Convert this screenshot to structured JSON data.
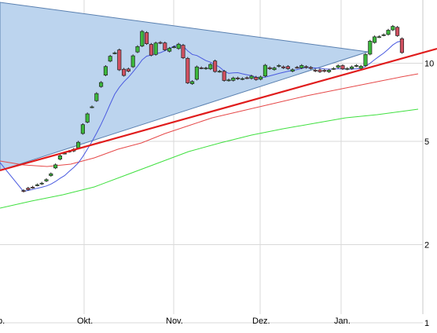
{
  "chart_data": {
    "type": "candlestick",
    "title": "",
    "xlabel": "",
    "ylabel": "",
    "y_scale": "log",
    "ylim": [
      0.65,
      14.5
    ],
    "y_ticks": [
      1,
      2,
      5,
      10
    ],
    "x_tick_labels": [
      "p.",
      "Okt.",
      "Nov.",
      "Dez.",
      "Jan."
    ],
    "grid": true,
    "colors": {
      "up_candle": "#3cb83c",
      "down_candle": "#d05060",
      "triangle_fill": "#bcd4ee",
      "triangle_edge": "#5a80b0",
      "support_line": "#e01c1c",
      "ma_blue": "#4a5ae0",
      "ma_red": "#e64a4a",
      "ma_green": "#40e040",
      "grid": "#d9d9d9"
    },
    "candles": [
      [
        3.23,
        3.21
      ],
      [
        3.3,
        3.26
      ],
      [
        3.33,
        3.32
      ],
      [
        3.39,
        3.4
      ],
      [
        3.43,
        3.45
      ],
      [
        3.52,
        3.56
      ],
      [
        3.69,
        3.75
      ],
      [
        3.95,
        4.06
      ],
      [
        4.27,
        4.4
      ],
      [
        4.5,
        4.5
      ],
      [
        4.57,
        4.58
      ],
      [
        4.59,
        4.66
      ],
      [
        4.72,
        4.96
      ],
      [
        5.36,
        5.8
      ],
      [
        5.93,
        6.38
      ],
      [
        6.78,
        6.79
      ],
      [
        7.17,
        7.64
      ],
      [
        8.13,
        8.43
      ],
      [
        9.0,
        9.71
      ],
      [
        10.19,
        10.64
      ],
      [
        10.93,
        10.96
      ],
      [
        11.25,
        9.43
      ],
      [
        9.48,
        8.97
      ],
      [
        9.5,
        9.32
      ],
      [
        9.69,
        10.68
      ],
      [
        11.05,
        11.59
      ],
      [
        11.65,
        13.26
      ],
      [
        13.12,
        11.89
      ],
      [
        11.82,
        10.74
      ],
      [
        10.81,
        11.96
      ],
      [
        12.02,
        11.97
      ],
      [
        11.97,
        11.26
      ],
      [
        11.12,
        11.41
      ],
      [
        11.54,
        11.56
      ],
      [
        11.39,
        11.84
      ],
      [
        11.73,
        10.49
      ],
      [
        10.44,
        8.4
      ],
      [
        8.34,
        8.5
      ],
      [
        8.67,
        9.68
      ],
      [
        9.6,
        9.58
      ],
      [
        9.53,
        9.58
      ],
      [
        9.51,
        9.89
      ],
      [
        10.2,
        9.29
      ],
      [
        9.29,
        9.31
      ],
      [
        9.31,
        8.58
      ],
      [
        8.58,
        8.62
      ],
      [
        8.59,
        8.77
      ],
      [
        8.77,
        8.71
      ],
      [
        8.69,
        8.72
      ],
      [
        8.79,
        8.78
      ],
      [
        8.74,
        8.92
      ],
      [
        8.83,
        8.65
      ],
      [
        8.68,
        8.85
      ],
      [
        8.93,
        9.82
      ],
      [
        9.61,
        9.52
      ],
      [
        9.45,
        9.59
      ],
      [
        9.73,
        9.8
      ],
      [
        9.68,
        9.6
      ],
      [
        9.71,
        9.53
      ],
      [
        9.32,
        9.44
      ],
      [
        9.64,
        9.63
      ],
      [
        9.59,
        9.8
      ],
      [
        9.7,
        9.63
      ],
      [
        9.63,
        9.55
      ],
      [
        9.4,
        9.33
      ],
      [
        9.42,
        9.27
      ],
      [
        9.39,
        9.31
      ],
      [
        9.27,
        9.4
      ],
      [
        9.52,
        9.54
      ],
      [
        9.64,
        9.78
      ],
      [
        9.79,
        9.51
      ],
      [
        9.49,
        9.54
      ],
      [
        9.54,
        9.68
      ],
      [
        9.75,
        9.8
      ],
      [
        9.56,
        9.74
      ],
      [
        9.78,
        10.81
      ],
      [
        10.84,
        12.16
      ],
      [
        12.02,
        12.64
      ],
      [
        12.63,
        12.65
      ],
      [
        12.83,
        12.87
      ],
      [
        12.91,
        13.4
      ],
      [
        13.44,
        13.87
      ],
      [
        13.75,
        12.77
      ],
      [
        12.43,
        10.99
      ]
    ]
  }
}
